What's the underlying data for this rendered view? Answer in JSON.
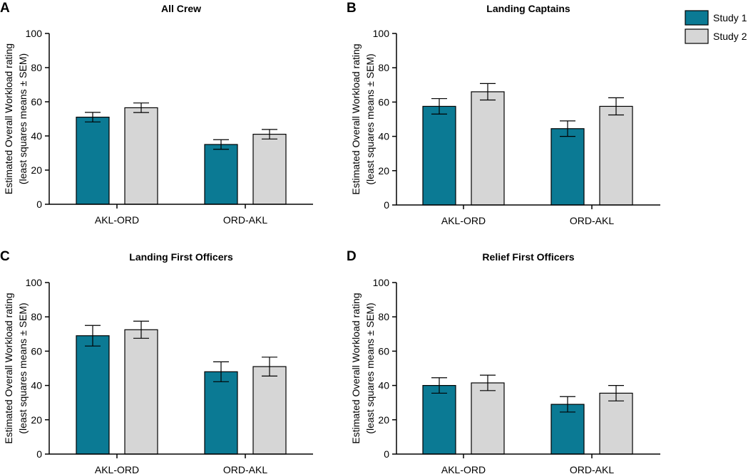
{
  "legend": [
    {
      "name": "Study 1",
      "color": "#0b7a94"
    },
    {
      "name": "Study 2",
      "color": "#d6d6d6"
    }
  ],
  "chart_data": [
    {
      "panel": "A",
      "type": "bar",
      "title": "All Crew",
      "ylabel_lines": [
        "Estimated Overall Workload rating",
        "(least squares means ± SEM)"
      ],
      "categories": [
        "AKL-ORD",
        "ORD-AKL"
      ],
      "ylim": [
        0,
        100
      ],
      "yticks": [
        "0",
        "20",
        "40",
        "60",
        "80",
        "100"
      ],
      "series": [
        {
          "name": "Study 1",
          "values": [
            51,
            35
          ],
          "err": [
            2.8,
            2.8
          ]
        },
        {
          "name": "Study 2",
          "values": [
            56.5,
            41
          ],
          "err": [
            2.8,
            2.8
          ]
        }
      ]
    },
    {
      "panel": "B",
      "type": "bar",
      "title": "Landing Captains",
      "ylabel_lines": [
        "Estimated Overall Workload rating",
        "(least squares means ± SEM)"
      ],
      "categories": [
        "AKL-ORD",
        "ORD-AKL"
      ],
      "ylim": [
        0,
        100
      ],
      "yticks": [
        "0",
        "20",
        "40",
        "60",
        "80",
        "100"
      ],
      "series": [
        {
          "name": "Study 1",
          "values": [
            57.5,
            44.5
          ],
          "err": [
            4.5,
            4.5
          ]
        },
        {
          "name": "Study 2",
          "values": [
            66,
            57.5
          ],
          "err": [
            4.8,
            5
          ]
        }
      ]
    },
    {
      "panel": "C",
      "type": "bar",
      "title": "Landing First Officers",
      "ylabel_lines": [
        "Estimated Overall Workload rating",
        "(least squares means ± SEM)"
      ],
      "categories": [
        "AKL-ORD",
        "ORD-AKL"
      ],
      "ylim": [
        0,
        100
      ],
      "yticks": [
        "0",
        "20",
        "40",
        "60",
        "80",
        "100"
      ],
      "series": [
        {
          "name": "Study 1",
          "values": [
            69,
            48
          ],
          "err": [
            6,
            5.8
          ]
        },
        {
          "name": "Study 2",
          "values": [
            72.5,
            51
          ],
          "err": [
            5,
            5.5
          ]
        }
      ]
    },
    {
      "panel": "D",
      "type": "bar",
      "title": "Relief First Officers",
      "ylabel_lines": [
        "Estimated Overall Workload rating",
        "(least squares means ± SEM)"
      ],
      "categories": [
        "AKL-ORD",
        "ORD-AKL"
      ],
      "ylim": [
        0,
        100
      ],
      "yticks": [
        "0",
        "20",
        "40",
        "60",
        "80",
        "100"
      ],
      "series": [
        {
          "name": "Study 1",
          "values": [
            40,
            29
          ],
          "err": [
            4.5,
            4.5
          ]
        },
        {
          "name": "Study 2",
          "values": [
            41.5,
            35.5
          ],
          "err": [
            4.5,
            4.5
          ]
        }
      ]
    }
  ]
}
